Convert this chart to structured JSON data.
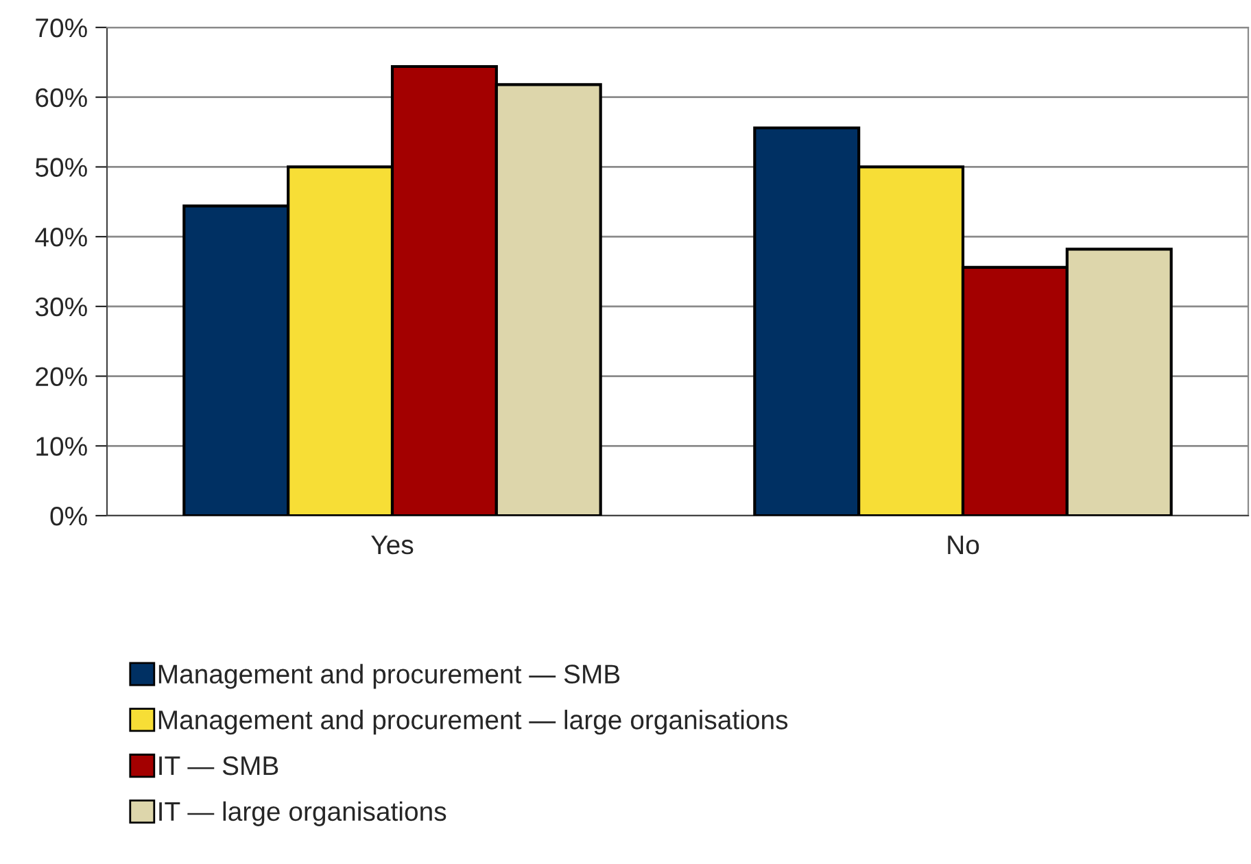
{
  "chart_data": {
    "type": "bar",
    "categories": [
      "Yes",
      "No"
    ],
    "series": [
      {
        "name": "Management and procurement — SMB",
        "color": "#003063",
        "values": [
          44.4,
          55.6
        ]
      },
      {
        "name": "Management and procurement — large organisations",
        "color": "#f7de36",
        "values": [
          50,
          50
        ]
      },
      {
        "name": "IT — SMB",
        "color": "#a30000",
        "values": [
          64.4,
          35.6
        ]
      },
      {
        "name": "IT — large organisations",
        "color": "#ddd6ab",
        "values": [
          61.8,
          38.2
        ]
      }
    ],
    "ylim": [
      0,
      70
    ],
    "yticks": [
      {
        "value": 0,
        "label": "0%"
      },
      {
        "value": 10,
        "label": "10%"
      },
      {
        "value": 20,
        "label": "20%"
      },
      {
        "value": 30,
        "label": "30%"
      },
      {
        "value": 40,
        "label": "40%"
      },
      {
        "value": 50,
        "label": "50%"
      },
      {
        "value": 60,
        "label": "60%"
      },
      {
        "value": 70,
        "label": "70%"
      }
    ],
    "grid": "y",
    "legend": "bottom"
  }
}
